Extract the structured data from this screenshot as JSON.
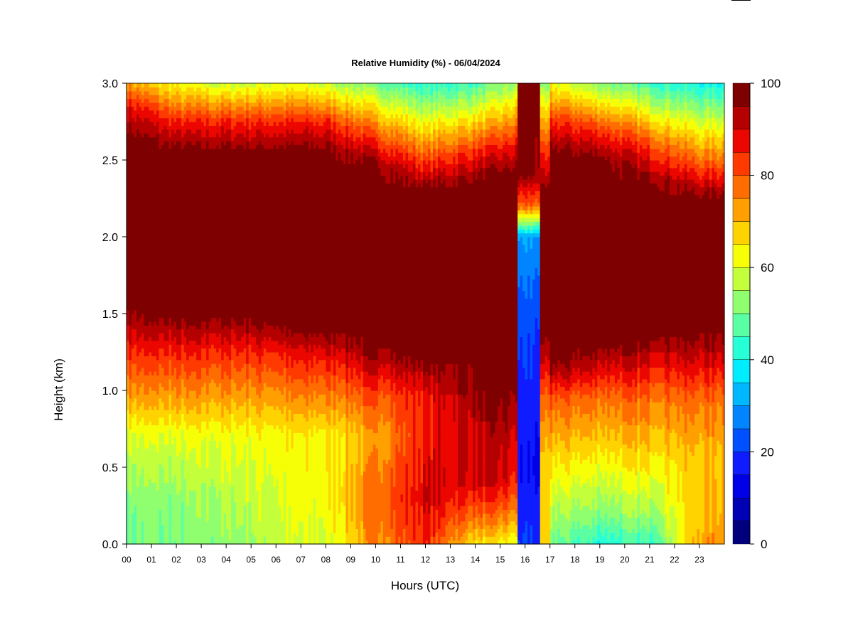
{
  "chart_data": {
    "type": "heatmap",
    "title": "Relative Humidity (%) - 06/04/2024",
    "xlabel": "Hours (UTC)",
    "ylabel": "Height (km)",
    "x_range": [
      0,
      24
    ],
    "y_range": [
      0,
      3.0
    ],
    "x_ticks": [
      "00",
      "01",
      "02",
      "03",
      "04",
      "05",
      "06",
      "07",
      "08",
      "09",
      "10",
      "11",
      "12",
      "13",
      "14",
      "15",
      "16",
      "17",
      "18",
      "19",
      "20",
      "21",
      "22",
      "23"
    ],
    "y_ticks": [
      "0.0",
      "0.5",
      "1.0",
      "1.5",
      "2.0",
      "2.5",
      "3.0"
    ],
    "colorbar": {
      "min": 0,
      "max": 100,
      "step": 5,
      "tick_labels": [
        "0",
        "20",
        "40",
        "60",
        "80",
        "100"
      ],
      "colors": [
        "#00007F",
        "#0000B4",
        "#0000E8",
        "#0F1CFF",
        "#0050FF",
        "#0084FF",
        "#00B8FF",
        "#00ECFF",
        "#27FFD7",
        "#5BFFA3",
        "#8FFF6F",
        "#C3FF3B",
        "#F7FF07",
        "#FFD300",
        "#FFA000",
        "#FF6C00",
        "#FF3A00",
        "#EC0600",
        "#B40000",
        "#7F0000"
      ]
    },
    "hourly_profiles": [
      {
        "hour": 0,
        "rh": [
          {
            "h": 0.0,
            "v": 50
          },
          {
            "h": 0.3,
            "v": 52
          },
          {
            "h": 0.7,
            "v": 60
          },
          {
            "h": 0.95,
            "v": 72
          },
          {
            "h": 1.25,
            "v": 85
          },
          {
            "h": 1.55,
            "v": 98
          },
          {
            "h": 2.65,
            "v": 98
          },
          {
            "h": 2.85,
            "v": 88
          },
          {
            "h": 3.0,
            "v": 72
          }
        ]
      },
      {
        "hour": 2,
        "rh": [
          {
            "h": 0.0,
            "v": 50
          },
          {
            "h": 0.3,
            "v": 52
          },
          {
            "h": 0.7,
            "v": 60
          },
          {
            "h": 0.95,
            "v": 72
          },
          {
            "h": 1.25,
            "v": 85
          },
          {
            "h": 1.5,
            "v": 98
          },
          {
            "h": 2.55,
            "v": 98
          },
          {
            "h": 2.75,
            "v": 85
          },
          {
            "h": 3.0,
            "v": 62
          }
        ]
      },
      {
        "hour": 4,
        "rh": [
          {
            "h": 0.0,
            "v": 52
          },
          {
            "h": 0.3,
            "v": 56
          },
          {
            "h": 0.7,
            "v": 62
          },
          {
            "h": 0.95,
            "v": 72
          },
          {
            "h": 1.25,
            "v": 85
          },
          {
            "h": 1.5,
            "v": 98
          },
          {
            "h": 2.55,
            "v": 98
          },
          {
            "h": 2.75,
            "v": 85
          },
          {
            "h": 3.0,
            "v": 58
          }
        ]
      },
      {
        "hour": 6,
        "rh": [
          {
            "h": 0.0,
            "v": 58
          },
          {
            "h": 0.3,
            "v": 60
          },
          {
            "h": 0.7,
            "v": 63
          },
          {
            "h": 0.95,
            "v": 73
          },
          {
            "h": 1.25,
            "v": 86
          },
          {
            "h": 1.45,
            "v": 98
          },
          {
            "h": 2.55,
            "v": 98
          },
          {
            "h": 2.75,
            "v": 85
          },
          {
            "h": 3.0,
            "v": 60
          }
        ]
      },
      {
        "hour": 8,
        "rh": [
          {
            "h": 0.0,
            "v": 60
          },
          {
            "h": 0.3,
            "v": 62
          },
          {
            "h": 0.7,
            "v": 64
          },
          {
            "h": 0.95,
            "v": 75
          },
          {
            "h": 1.2,
            "v": 86
          },
          {
            "h": 1.4,
            "v": 98
          },
          {
            "h": 2.55,
            "v": 98
          },
          {
            "h": 2.75,
            "v": 85
          },
          {
            "h": 3.0,
            "v": 58
          }
        ]
      },
      {
        "hour": 10,
        "rh": [
          {
            "h": 0.0,
            "v": 75
          },
          {
            "h": 0.3,
            "v": 78
          },
          {
            "h": 0.7,
            "v": 72
          },
          {
            "h": 0.95,
            "v": 80
          },
          {
            "h": 1.1,
            "v": 88
          },
          {
            "h": 1.3,
            "v": 98
          },
          {
            "h": 2.45,
            "v": 98
          },
          {
            "h": 2.65,
            "v": 82
          },
          {
            "h": 3.0,
            "v": 50
          }
        ]
      },
      {
        "hour": 12,
        "rh": [
          {
            "h": 0.0,
            "v": 84
          },
          {
            "h": 0.3,
            "v": 90
          },
          {
            "h": 0.7,
            "v": 86
          },
          {
            "h": 0.95,
            "v": 86
          },
          {
            "h": 1.1,
            "v": 92
          },
          {
            "h": 1.2,
            "v": 98
          },
          {
            "h": 2.3,
            "v": 98
          },
          {
            "h": 2.5,
            "v": 82
          },
          {
            "h": 3.0,
            "v": 42
          }
        ]
      },
      {
        "hour": 14,
        "rh": [
          {
            "h": 0.0,
            "v": 66
          },
          {
            "h": 0.15,
            "v": 76
          },
          {
            "h": 0.4,
            "v": 90
          },
          {
            "h": 0.8,
            "v": 92
          },
          {
            "h": 1.0,
            "v": 97
          },
          {
            "h": 2.35,
            "v": 98
          },
          {
            "h": 2.55,
            "v": 85
          },
          {
            "h": 3.0,
            "v": 45
          }
        ]
      },
      {
        "hour": 15.3,
        "rh": [
          {
            "h": 0.0,
            "v": 62
          },
          {
            "h": 0.15,
            "v": 74
          },
          {
            "h": 0.4,
            "v": 88
          },
          {
            "h": 0.8,
            "v": 94
          },
          {
            "h": 1.0,
            "v": 98
          },
          {
            "h": 2.4,
            "v": 98
          },
          {
            "h": 2.6,
            "v": 85
          },
          {
            "h": 3.0,
            "v": 52
          }
        ]
      },
      {
        "hour": 16,
        "rh": [
          {
            "h": 0.0,
            "v": 20
          },
          {
            "h": 0.5,
            "v": 15
          },
          {
            "h": 1.0,
            "v": 18
          },
          {
            "h": 1.5,
            "v": 22
          },
          {
            "h": 2.0,
            "v": 30
          },
          {
            "h": 2.2,
            "v": 78
          },
          {
            "h": 2.4,
            "v": 96
          },
          {
            "h": 3.0,
            "v": 98
          }
        ]
      },
      {
        "hour": 17,
        "rh": [
          {
            "h": 0.0,
            "v": 50
          },
          {
            "h": 0.2,
            "v": 56
          },
          {
            "h": 0.55,
            "v": 66
          },
          {
            "h": 0.95,
            "v": 80
          },
          {
            "h": 1.1,
            "v": 92
          },
          {
            "h": 1.2,
            "v": 98
          },
          {
            "h": 2.55,
            "v": 98
          },
          {
            "h": 2.75,
            "v": 85
          },
          {
            "h": 3.0,
            "v": 62
          }
        ]
      },
      {
        "hour": 19,
        "rh": [
          {
            "h": 0.0,
            "v": 42
          },
          {
            "h": 0.2,
            "v": 52
          },
          {
            "h": 0.55,
            "v": 64
          },
          {
            "h": 0.95,
            "v": 78
          },
          {
            "h": 1.15,
            "v": 90
          },
          {
            "h": 1.3,
            "v": 98
          },
          {
            "h": 2.5,
            "v": 98
          },
          {
            "h": 2.72,
            "v": 82
          },
          {
            "h": 3.0,
            "v": 52
          }
        ]
      },
      {
        "hour": 21,
        "rh": [
          {
            "h": 0.0,
            "v": 44
          },
          {
            "h": 0.2,
            "v": 54
          },
          {
            "h": 0.55,
            "v": 66
          },
          {
            "h": 0.95,
            "v": 78
          },
          {
            "h": 1.2,
            "v": 90
          },
          {
            "h": 1.35,
            "v": 98
          },
          {
            "h": 2.35,
            "v": 98
          },
          {
            "h": 2.6,
            "v": 82
          },
          {
            "h": 3.0,
            "v": 45
          }
        ]
      },
      {
        "hour": 23,
        "rh": [
          {
            "h": 0.0,
            "v": 72
          },
          {
            "h": 0.2,
            "v": 70
          },
          {
            "h": 0.55,
            "v": 68
          },
          {
            "h": 0.95,
            "v": 78
          },
          {
            "h": 1.2,
            "v": 90
          },
          {
            "h": 1.4,
            "v": 98
          },
          {
            "h": 2.25,
            "v": 98
          },
          {
            "h": 2.5,
            "v": 78
          },
          {
            "h": 3.0,
            "v": 40
          }
        ]
      },
      {
        "hour": 24,
        "rh": [
          {
            "h": 0.0,
            "v": 74
          },
          {
            "h": 0.2,
            "v": 72
          },
          {
            "h": 0.55,
            "v": 70
          },
          {
            "h": 0.95,
            "v": 78
          },
          {
            "h": 1.2,
            "v": 90
          },
          {
            "h": 1.4,
            "v": 98
          },
          {
            "h": 2.25,
            "v": 98
          },
          {
            "h": 2.5,
            "v": 78
          },
          {
            "h": 3.0,
            "v": 40
          }
        ]
      }
    ]
  }
}
